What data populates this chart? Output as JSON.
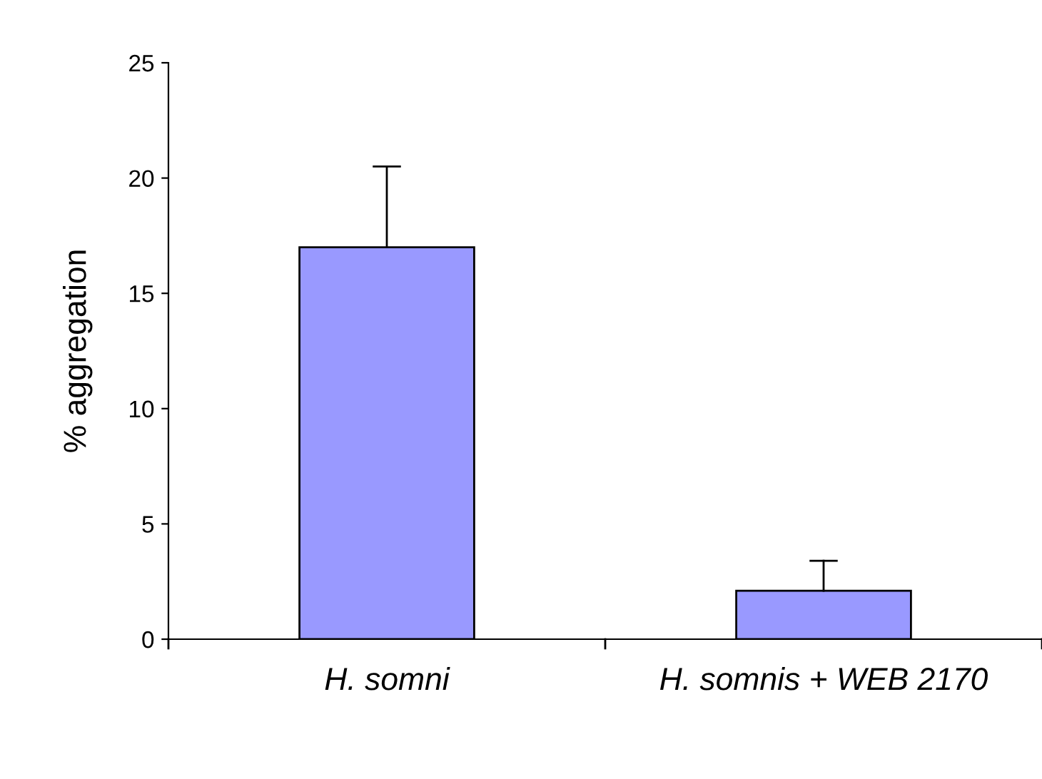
{
  "chart_data": {
    "type": "bar",
    "ylabel": "% aggregation",
    "categories": [
      "H. somni",
      "H. somnis + WEB 2170"
    ],
    "values": [
      17,
      2.1
    ],
    "errors": [
      [
        17,
        20.5
      ],
      [
        2.1,
        3.4
      ]
    ],
    "color": "#9999ff",
    "ylim": [
      0,
      25
    ],
    "yticks": [
      0,
      5,
      10,
      15,
      20,
      25
    ],
    "grid": false,
    "legend": false
  }
}
